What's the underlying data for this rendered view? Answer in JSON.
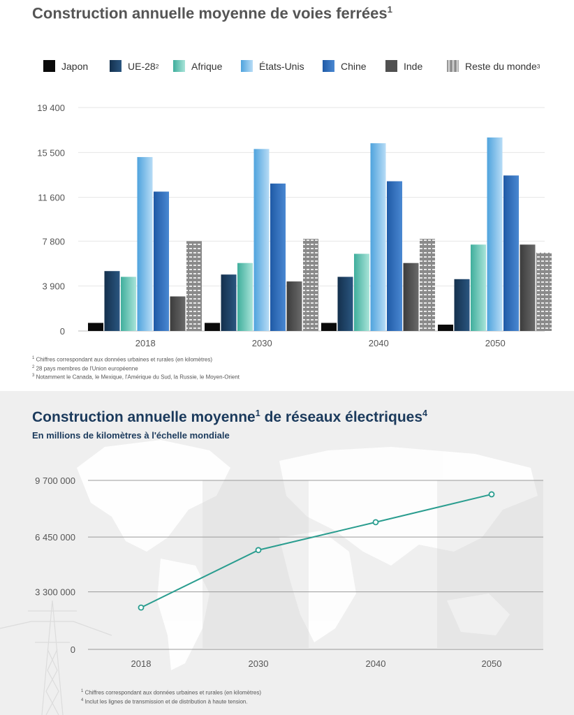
{
  "rail": {
    "title": "Construction annuelle moyenne de voies ferrées",
    "title_sup": "1",
    "legend": [
      {
        "label": "Japon",
        "sup": ""
      },
      {
        "label": "UE-28",
        "sup": "2"
      },
      {
        "label": "Afrique",
        "sup": ""
      },
      {
        "label": "États-Unis",
        "sup": ""
      },
      {
        "label": "Chine",
        "sup": ""
      },
      {
        "label": "Inde",
        "sup": ""
      },
      {
        "label": "Reste du monde",
        "sup": "3"
      }
    ],
    "notes": [
      {
        "sup": "1",
        "text": "Chiffres correspondant aux données urbaines et rurales (en kilomètres)"
      },
      {
        "sup": "2",
        "text": "28 pays membres de l'Union européenne"
      },
      {
        "sup": "3",
        "text": "Notamment le Canada, le Mexique, l'Amérique du Sud, la Russie, le Moyen-Orient"
      }
    ]
  },
  "grid": {
    "title": "Construction annuelle moyenne",
    "title_sup1": "1",
    "title_mid": " de réseaux électriques",
    "title_sup2": "4",
    "subtitle": "En millions de kilomètres à l'échelle mondiale",
    "notes": [
      {
        "sup": "1",
        "text": "Chiffres correspondant aux données urbaines et rurales (en kilomètres)"
      },
      {
        "sup": "4",
        "text": "Inclut les lignes de transmission et de distribution à haute tension."
      }
    ]
  },
  "colors": {
    "japon": "#0a0a0a",
    "ue28": "#1c3d5e",
    "afrique": "#5fc4b4",
    "etats_unis": "#6fb8e8",
    "chine": "#2f6bb8",
    "inde": "#505050",
    "reste": "#9a9a9a",
    "line": "#2a9d8f"
  },
  "chart_data": [
    {
      "type": "bar",
      "title": "Construction annuelle moyenne de voies ferrées",
      "categories": [
        "2018",
        "2030",
        "2040",
        "2050"
      ],
      "series": [
        {
          "name": "Japon",
          "values": [
            700,
            700,
            700,
            550
          ]
        },
        {
          "name": "UE-28",
          "values": [
            5200,
            4900,
            4700,
            4500
          ]
        },
        {
          "name": "Afrique",
          "values": [
            4700,
            5900,
            6700,
            7500
          ]
        },
        {
          "name": "États-Unis",
          "values": [
            15100,
            15800,
            16300,
            16800
          ]
        },
        {
          "name": "Chine",
          "values": [
            12100,
            12800,
            13000,
            13500
          ]
        },
        {
          "name": "Inde",
          "values": [
            3000,
            4300,
            5900,
            7500
          ]
        },
        {
          "name": "Reste du monde",
          "values": [
            7800,
            8000,
            8000,
            6800
          ]
        }
      ],
      "yticks": [
        "0",
        "3 900",
        "7 800",
        "11 600",
        "15 500",
        "19 400"
      ],
      "ytick_values": [
        0,
        3900,
        7800,
        11600,
        15500,
        19400
      ],
      "ylim": [
        0,
        19400
      ],
      "xlabel": "",
      "ylabel": "",
      "legend": "top"
    },
    {
      "type": "line",
      "title": "Construction annuelle moyenne de réseaux électriques",
      "categories": [
        "2018",
        "2030",
        "2040",
        "2050"
      ],
      "series": [
        {
          "name": "Réseaux électriques",
          "values": [
            2400000,
            5700000,
            7300000,
            8900000
          ]
        }
      ],
      "yticks": [
        "0",
        "3 300 000",
        "6 450 000",
        "9 700 000"
      ],
      "ytick_values": [
        0,
        3300000,
        6450000,
        9700000
      ],
      "ylim": [
        0,
        9700000
      ],
      "xlabel": "",
      "ylabel": ""
    }
  ]
}
